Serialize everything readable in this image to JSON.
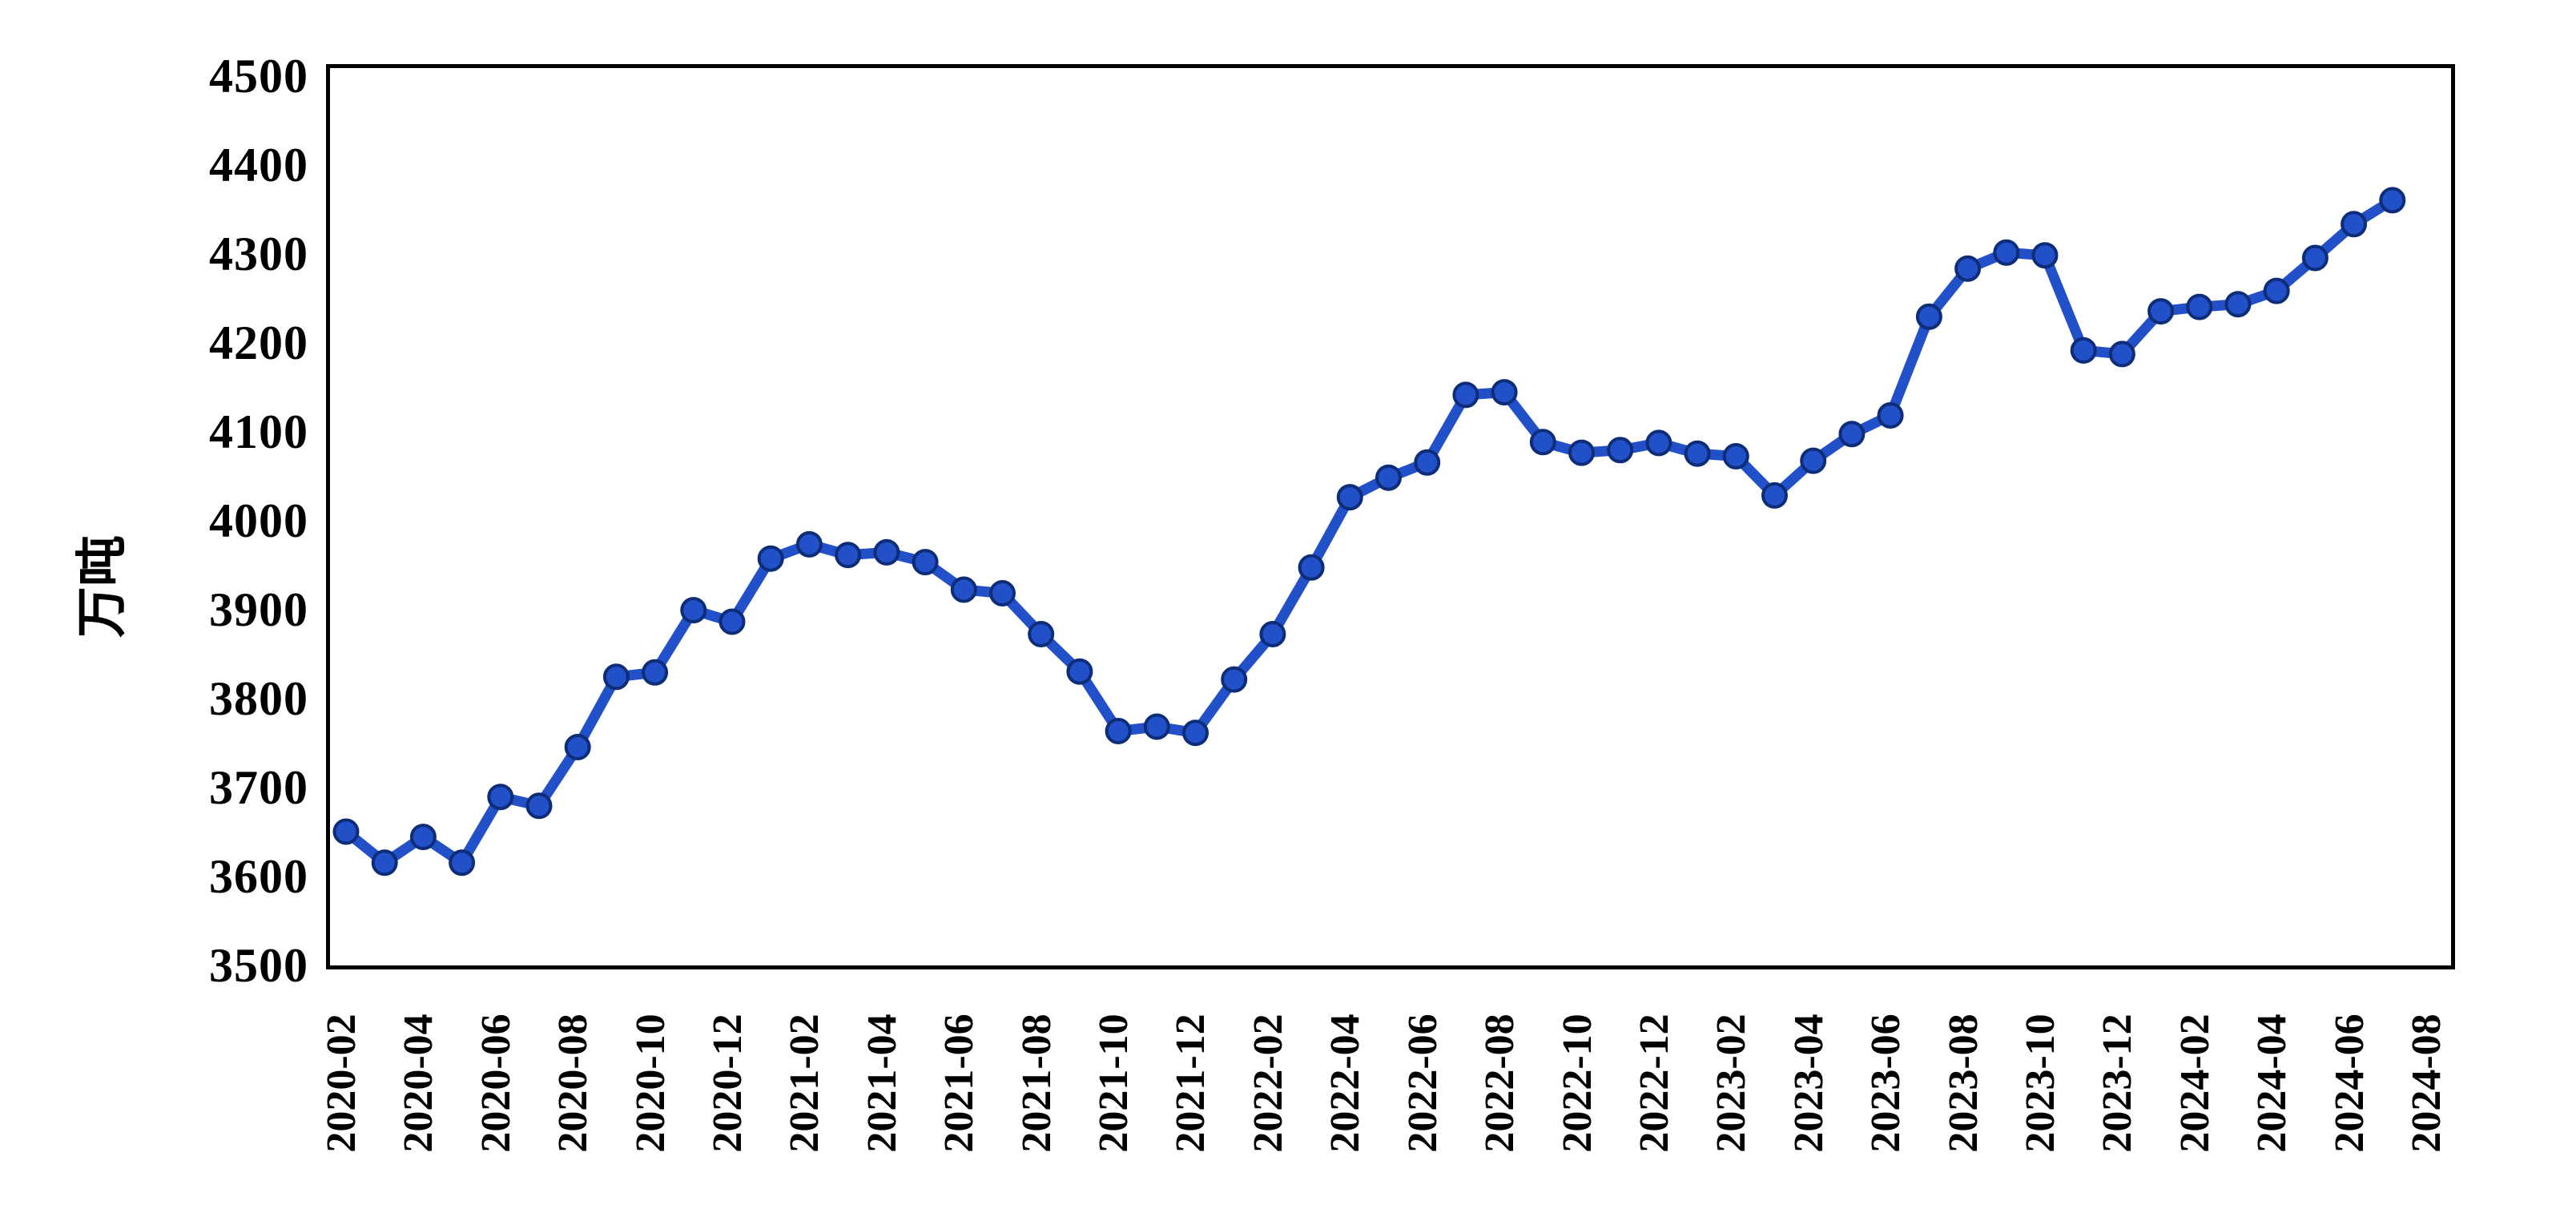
{
  "chart_data": {
    "type": "line",
    "title": "",
    "ylabel": "万吨",
    "xlabel": "",
    "legend_position": "none",
    "grid": false,
    "line_color": "#2150c8",
    "marker_edge_color": "#0e2d78",
    "axis_color": "#000000",
    "background_color": "#ffffff",
    "marker": "circle",
    "ylim": [
      3500,
      4500
    ],
    "y_tick_step": 100,
    "y_tick_labels": [
      "4500",
      "4400",
      "4300",
      "4200",
      "4100",
      "4000",
      "3900",
      "3800",
      "3700",
      "3600",
      "3500"
    ],
    "x_tick_labels": [
      "2020-02",
      "2020-04",
      "2020-06",
      "2020-08",
      "2020-10",
      "2020-12",
      "2021-02",
      "2021-04",
      "2021-06",
      "2021-08",
      "2021-10",
      "2021-12",
      "2022-02",
      "2022-04",
      "2022-06",
      "2022-08",
      "2022-10",
      "2022-12",
      "2023-02",
      "2023-04",
      "2023-06",
      "2023-08",
      "2023-10",
      "2023-12",
      "2024-02",
      "2024-04",
      "2024-06",
      "2024-08"
    ],
    "x_axis_last_category": "2024-08",
    "x": [
      "2020-02",
      "2020-03",
      "2020-04",
      "2020-05",
      "2020-06",
      "2020-07",
      "2020-08",
      "2020-09",
      "2020-10",
      "2020-11",
      "2020-12",
      "2021-01",
      "2021-02",
      "2021-03",
      "2021-04",
      "2021-05",
      "2021-06",
      "2021-07",
      "2021-08",
      "2021-09",
      "2021-10",
      "2021-11",
      "2021-12",
      "2022-01",
      "2022-02",
      "2022-03",
      "2022-04",
      "2022-05",
      "2022-06",
      "2022-07",
      "2022-08",
      "2022-09",
      "2022-10",
      "2022-11",
      "2022-12",
      "2023-01",
      "2023-02",
      "2023-03",
      "2023-04",
      "2023-05",
      "2023-06",
      "2023-07",
      "2023-08",
      "2023-09",
      "2023-10",
      "2023-11",
      "2023-12",
      "2024-01",
      "2024-02",
      "2024-03",
      "2024-04",
      "2024-05",
      "2024-06",
      "2024-07"
    ],
    "values": [
      3655,
      3620,
      3649,
      3620,
      3694,
      3684,
      3750,
      3829,
      3834,
      3904,
      3891,
      3962,
      3978,
      3966,
      3969,
      3958,
      3927,
      3923,
      3877,
      3835,
      3768,
      3773,
      3766,
      3826,
      3877,
      3952,
      4031,
      4053,
      4070,
      4146,
      4149,
      4093,
      4081,
      4084,
      4092,
      4080,
      4077,
      4033,
      4072,
      4102,
      4123,
      4234,
      4288,
      4306,
      4303,
      4196,
      4192,
      4240,
      4245,
      4248,
      4263,
      4300,
      4338,
      4365
    ]
  }
}
